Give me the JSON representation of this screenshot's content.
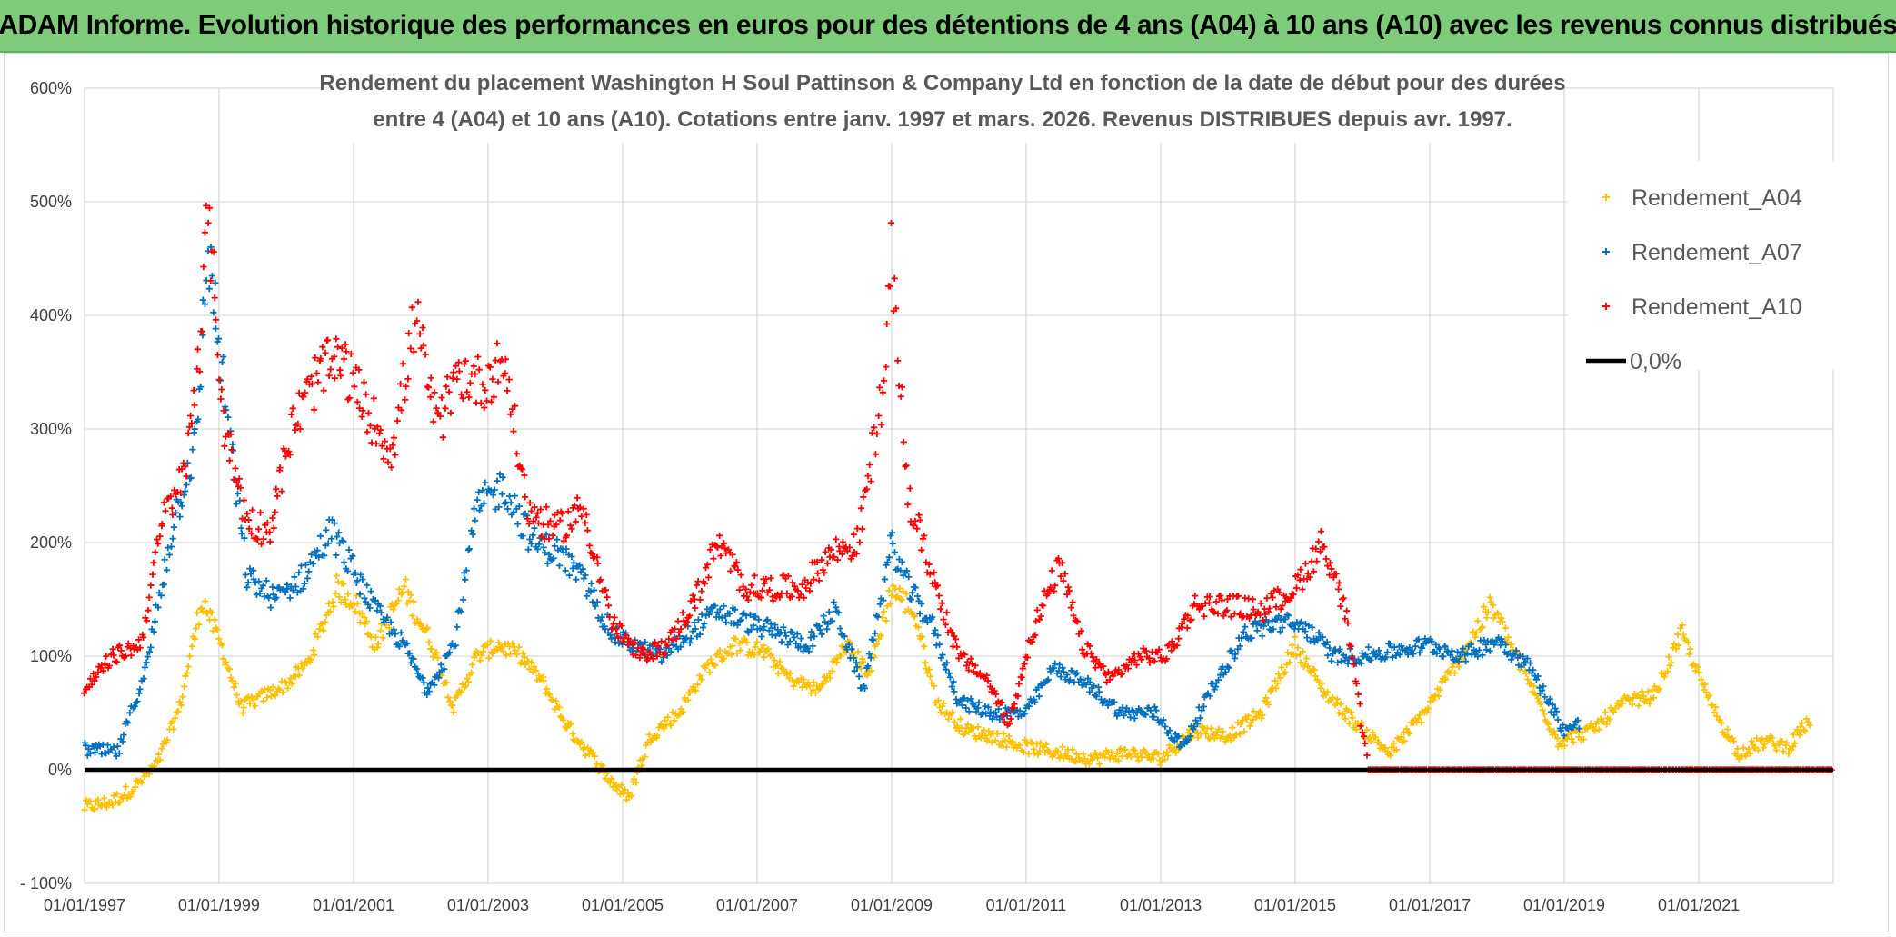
{
  "banner": {
    "title": "ADAM Informe. Evolution historique des performances en euros pour des détentions de 4 ans (A04) à 10 ans (A10) avec les revenus connus distribués"
  },
  "chart_data": {
    "type": "scatter",
    "title_lines": [
      "Rendement du placement Washington H Soul Pattinson & Company Ltd en fonction de la date de début pour des durées",
      "entre 4 (A04) et 10 ans (A10). Cotations entre janv. 1997 et mars. 2026. Revenus DISTRIBUES depuis avr. 1997."
    ],
    "xlabel": "",
    "ylabel": "",
    "x_tick_labels": [
      "01/01/1997",
      "01/01/1999",
      "01/01/2001",
      "01/01/2003",
      "01/01/2005",
      "01/01/2007",
      "01/01/2009",
      "01/01/2011",
      "01/01/2013",
      "01/01/2015",
      "01/01/2017",
      "01/01/2019",
      "01/01/2021"
    ],
    "xlim": [
      "1997-01-01",
      "2023-01-01"
    ],
    "y_tick_labels": [
      "- 100%",
      "0%",
      "100%",
      "200%",
      "300%",
      "400%",
      "500%",
      "600%"
    ],
    "ylim": [
      -100,
      600
    ],
    "y_unit": "%",
    "grid": true,
    "legend_position": "top-right",
    "series": [
      {
        "name": "Rendement_A04",
        "color": "#ffc000",
        "marker": "plus",
        "points": [
          [
            "1997-01-01",
            -33
          ],
          [
            "1997-06-01",
            -28
          ],
          [
            "1997-10-01",
            -15
          ],
          [
            "1998-02-01",
            5
          ],
          [
            "1998-06-01",
            55
          ],
          [
            "1998-10-01",
            150
          ],
          [
            "1999-01-01",
            115
          ],
          [
            "1999-05-01",
            55
          ],
          [
            "1999-09-01",
            65
          ],
          [
            "2000-01-01",
            75
          ],
          [
            "2000-05-01",
            95
          ],
          [
            "2000-10-01",
            160
          ],
          [
            "2001-01-01",
            150
          ],
          [
            "2001-05-01",
            110
          ],
          [
            "2001-10-01",
            160
          ],
          [
            "2002-03-01",
            110
          ],
          [
            "2002-07-01",
            55
          ],
          [
            "2002-11-01",
            100
          ],
          [
            "2003-03-01",
            110
          ],
          [
            "2003-07-01",
            100
          ],
          [
            "2003-11-01",
            75
          ],
          [
            "2004-03-01",
            40
          ],
          [
            "2004-07-01",
            15
          ],
          [
            "2004-11-01",
            -10
          ],
          [
            "2005-02-01",
            -25
          ],
          [
            "2005-06-01",
            30
          ],
          [
            "2005-11-01",
            50
          ],
          [
            "2006-04-01",
            90
          ],
          [
            "2006-09-01",
            110
          ],
          [
            "2007-02-01",
            105
          ],
          [
            "2007-07-01",
            80
          ],
          [
            "2007-12-01",
            70
          ],
          [
            "2008-05-01",
            110
          ],
          [
            "2008-09-01",
            85
          ],
          [
            "2009-01-01",
            160
          ],
          [
            "2009-05-01",
            140
          ],
          [
            "2009-09-01",
            60
          ],
          [
            "2010-02-01",
            35
          ],
          [
            "2010-07-01",
            30
          ],
          [
            "2011-01-01",
            20
          ],
          [
            "2011-07-01",
            15
          ],
          [
            "2012-01-01",
            10
          ],
          [
            "2012-07-01",
            15
          ],
          [
            "2013-01-01",
            10
          ],
          [
            "2013-07-01",
            35
          ],
          [
            "2014-01-01",
            30
          ],
          [
            "2014-07-01",
            50
          ],
          [
            "2015-01-01",
            110
          ],
          [
            "2015-06-01",
            70
          ],
          [
            "2015-12-01",
            40
          ],
          [
            "2016-06-01",
            15
          ],
          [
            "2016-12-01",
            50
          ],
          [
            "2017-06-01",
            95
          ],
          [
            "2017-12-01",
            145
          ],
          [
            "2018-06-01",
            85
          ],
          [
            "2018-12-01",
            25
          ],
          [
            "2019-06-01",
            35
          ],
          [
            "2019-12-01",
            60
          ],
          [
            "2020-05-01",
            65
          ],
          [
            "2020-10-01",
            120
          ],
          [
            "2021-03-01",
            60
          ],
          [
            "2021-08-01",
            15
          ],
          [
            "2022-01-01",
            25
          ],
          [
            "2022-05-01",
            20
          ],
          [
            "2022-09-01",
            45
          ]
        ]
      },
      {
        "name": "Rendement_A07",
        "color": "#0070c0",
        "marker": "plus",
        "points": [
          [
            "1997-01-01",
            18
          ],
          [
            "1997-07-01",
            15
          ],
          [
            "1997-12-01",
            90
          ],
          [
            "1998-05-01",
            220
          ],
          [
            "1998-09-01",
            290
          ],
          [
            "1998-11-01",
            460
          ],
          [
            "1999-02-01",
            330
          ],
          [
            "1999-06-01",
            170
          ],
          [
            "1999-11-01",
            150
          ],
          [
            "2000-04-01",
            170
          ],
          [
            "2000-09-01",
            210
          ],
          [
            "2001-01-01",
            175
          ],
          [
            "2001-05-01",
            140
          ],
          [
            "2001-10-01",
            110
          ],
          [
            "2002-02-01",
            70
          ],
          [
            "2002-07-01",
            110
          ],
          [
            "2002-11-01",
            230
          ],
          [
            "2003-04-01",
            250
          ],
          [
            "2003-09-01",
            200
          ],
          [
            "2004-02-01",
            190
          ],
          [
            "2004-07-01",
            160
          ],
          [
            "2004-11-01",
            120
          ],
          [
            "2005-03-01",
            110
          ],
          [
            "2005-08-01",
            100
          ],
          [
            "2006-01-01",
            120
          ],
          [
            "2006-06-01",
            140
          ],
          [
            "2006-11-01",
            130
          ],
          [
            "2007-05-01",
            120
          ],
          [
            "2007-10-01",
            110
          ],
          [
            "2008-03-01",
            140
          ],
          [
            "2008-08-01",
            70
          ],
          [
            "2009-01-01",
            200
          ],
          [
            "2009-04-01",
            160
          ],
          [
            "2009-08-01",
            130
          ],
          [
            "2010-01-01",
            60
          ],
          [
            "2010-07-01",
            50
          ],
          [
            "2011-01-01",
            50
          ],
          [
            "2011-06-01",
            90
          ],
          [
            "2011-12-01",
            75
          ],
          [
            "2012-06-01",
            50
          ],
          [
            "2012-12-01",
            50
          ],
          [
            "2013-05-01",
            20
          ],
          [
            "2013-10-01",
            70
          ],
          [
            "2014-04-01",
            120
          ],
          [
            "2014-10-01",
            130
          ],
          [
            "2015-03-01",
            125
          ],
          [
            "2015-08-01",
            100
          ],
          [
            "2016-01-01",
            100
          ],
          [
            "2016-07-01",
            105
          ],
          [
            "2017-01-01",
            110
          ],
          [
            "2017-07-01",
            100
          ],
          [
            "2018-01-01",
            115
          ],
          [
            "2018-07-01",
            90
          ],
          [
            "2019-01-01",
            35
          ],
          [
            "2019-04-01",
            40
          ]
        ]
      },
      {
        "name": "Rendement_A10",
        "color": "#ff0000",
        "marker": "plus",
        "points": [
          [
            "1997-01-01",
            70
          ],
          [
            "1997-06-01",
            100
          ],
          [
            "1997-11-01",
            110
          ],
          [
            "1998-03-01",
            220
          ],
          [
            "1998-07-01",
            260
          ],
          [
            "1998-10-01",
            400
          ],
          [
            "1998-11-01",
            490
          ],
          [
            "1999-02-01",
            300
          ],
          [
            "1999-06-01",
            220
          ],
          [
            "1999-10-01",
            210
          ],
          [
            "2000-02-01",
            300
          ],
          [
            "2000-07-01",
            350
          ],
          [
            "2000-11-01",
            360
          ],
          [
            "2001-03-01",
            320
          ],
          [
            "2001-08-01",
            280
          ],
          [
            "2001-12-01",
            400
          ],
          [
            "2002-04-01",
            300
          ],
          [
            "2002-08-01",
            350
          ],
          [
            "2002-12-01",
            340
          ],
          [
            "2003-04-01",
            360
          ],
          [
            "2003-08-01",
            230
          ],
          [
            "2004-01-01",
            210
          ],
          [
            "2004-06-01",
            230
          ],
          [
            "2004-11-01",
            130
          ],
          [
            "2005-04-01",
            100
          ],
          [
            "2005-09-01",
            110
          ],
          [
            "2006-02-01",
            150
          ],
          [
            "2006-06-01",
            200
          ],
          [
            "2006-11-01",
            160
          ],
          [
            "2007-04-01",
            160
          ],
          [
            "2007-09-01",
            160
          ],
          [
            "2008-02-01",
            190
          ],
          [
            "2008-07-01",
            200
          ],
          [
            "2008-12-01",
            350
          ],
          [
            "2009-01-01",
            450
          ],
          [
            "2009-04-01",
            240
          ],
          [
            "2009-09-01",
            160
          ],
          [
            "2010-01-01",
            100
          ],
          [
            "2010-06-01",
            80
          ],
          [
            "2010-10-01",
            40
          ],
          [
            "2011-02-01",
            120
          ],
          [
            "2011-07-01",
            180
          ],
          [
            "2011-11-01",
            110
          ],
          [
            "2012-04-01",
            80
          ],
          [
            "2012-09-01",
            100
          ],
          [
            "2013-02-01",
            100
          ],
          [
            "2013-07-01",
            145
          ],
          [
            "2014-01-01",
            145
          ],
          [
            "2014-07-01",
            140
          ],
          [
            "2015-01-01",
            160
          ],
          [
            "2015-06-01",
            200
          ],
          [
            "2015-10-01",
            140
          ],
          [
            "2016-02-01",
            0
          ],
          [
            "2016-08-01",
            0
          ],
          [
            "2017-02-01",
            0
          ],
          [
            "2018-01-01",
            0
          ],
          [
            "2019-01-01",
            0
          ],
          [
            "2020-01-01",
            0
          ],
          [
            "2021-01-01",
            0
          ],
          [
            "2022-01-01",
            0
          ],
          [
            "2023-01-01",
            0
          ]
        ]
      },
      {
        "name": "0,0%",
        "color": "#000000",
        "marker": "line",
        "points": [
          [
            "1997-01-01",
            0
          ],
          [
            "2023-01-01",
            0
          ]
        ]
      }
    ]
  }
}
